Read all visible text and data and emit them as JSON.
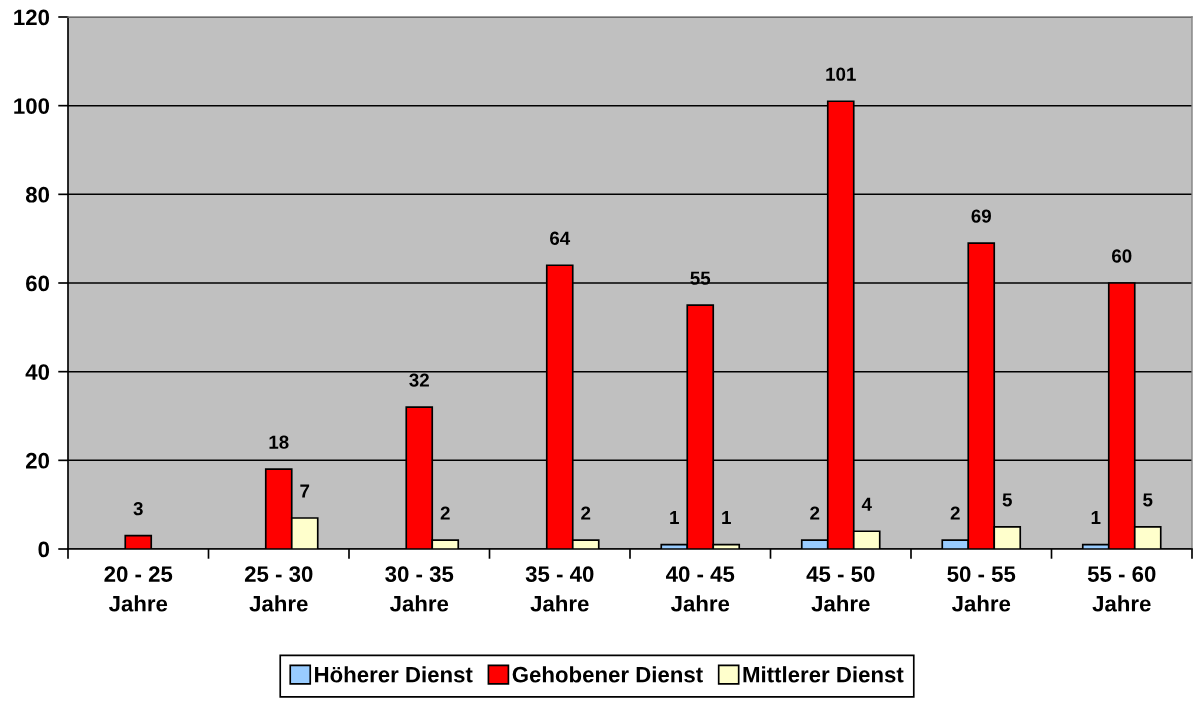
{
  "chart_data": {
    "type": "bar",
    "categories": [
      "20 - 25\nJahre",
      "25 - 30\nJahre",
      "30 - 35\nJahre",
      "35 - 40\nJahre",
      "40 - 45\nJahre",
      "45 - 50\nJahre",
      "50 - 55\nJahre",
      "55 - 60\nJahre"
    ],
    "series": [
      {
        "name": "Höherer Dienst",
        "color": "#99ccff",
        "values": [
          null,
          null,
          null,
          null,
          1,
          2,
          2,
          1
        ]
      },
      {
        "name": "Gehobener Dienst",
        "color": "#ff0000",
        "values": [
          3,
          18,
          32,
          64,
          55,
          101,
          69,
          60
        ]
      },
      {
        "name": "Mittlerer Dienst",
        "color": "#ffffcc",
        "values": [
          null,
          7,
          2,
          2,
          1,
          4,
          5,
          5
        ]
      }
    ],
    "ylim": [
      0,
      120
    ],
    "yticks": [
      0,
      20,
      40,
      60,
      80,
      100,
      120
    ],
    "grid": "y",
    "legend": "bottom",
    "data_labels": true
  }
}
